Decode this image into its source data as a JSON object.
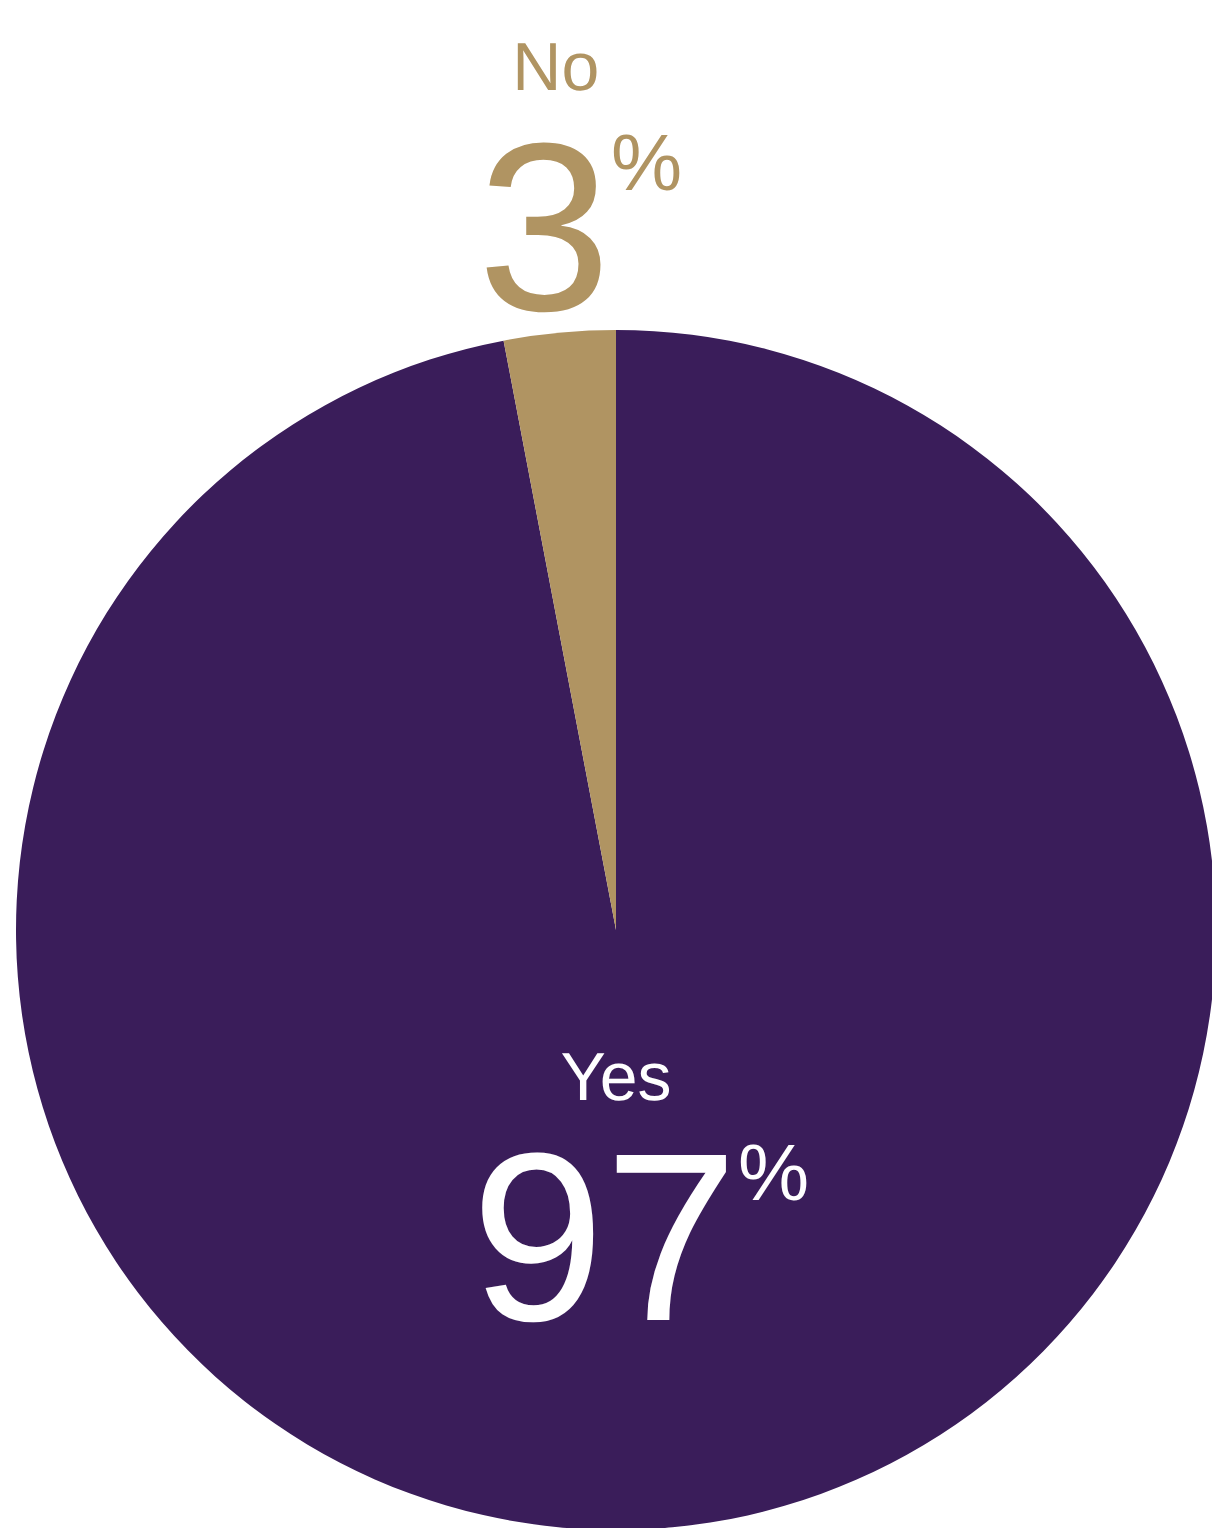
{
  "chart_data": {
    "type": "pie",
    "categories": [
      "Yes",
      "No"
    ],
    "values": [
      97,
      3
    ],
    "colors": [
      "#3a1d5a",
      "#b09462"
    ],
    "value_labels": [
      "97$^{%}$",
      "3$^{%}$"
    ]
  }
}
